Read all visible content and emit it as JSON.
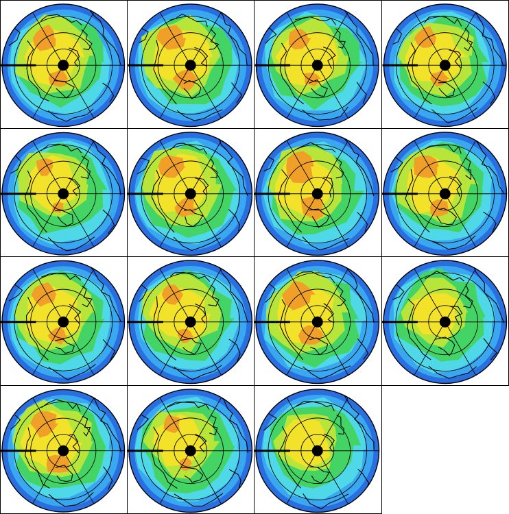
{
  "palette": {
    "ocean_ring": "#2a6fe0",
    "blue": "#3aa8f0",
    "cyan": "#4fd8e8",
    "green": "#44d466",
    "yellow_green": "#b8e53a",
    "yellow": "#f2e22a",
    "orange": "#f0a028",
    "coastline": "#000000",
    "frame": "#000000",
    "background": "#ffffff"
  },
  "panels": [
    {
      "orange": 0.55,
      "yellow": 0.8,
      "lowbias": 0.4
    },
    {
      "orange": 0.7,
      "yellow": 0.85,
      "lowbias": 0.35
    },
    {
      "orange": 0.4,
      "yellow": 0.75,
      "lowbias": 0.45
    },
    {
      "orange": 0.45,
      "yellow": 0.8,
      "lowbias": 0.4
    },
    {
      "orange": 0.2,
      "yellow": 0.65,
      "lowbias": 0.5
    },
    {
      "orange": 0.6,
      "yellow": 0.85,
      "lowbias": 0.4
    },
    {
      "orange": 0.85,
      "yellow": 0.9,
      "lowbias": 0.35
    },
    {
      "orange": 0.55,
      "yellow": 0.8,
      "lowbias": 0.45
    },
    {
      "orange": 0.45,
      "yellow": 0.8,
      "lowbias": 0.4
    },
    {
      "orange": 0.35,
      "yellow": 0.75,
      "lowbias": 0.45
    },
    {
      "orange": 0.8,
      "yellow": 0.85,
      "lowbias": 0.35
    },
    {
      "orange": 0.05,
      "yellow": 0.45,
      "lowbias": 0.6
    },
    {
      "orange": 0.65,
      "yellow": 0.8,
      "lowbias": 0.4
    },
    {
      "orange": 0.2,
      "yellow": 0.6,
      "lowbias": 0.55
    },
    {
      "orange": 0.05,
      "yellow": 0.4,
      "lowbias": 0.65
    }
  ]
}
